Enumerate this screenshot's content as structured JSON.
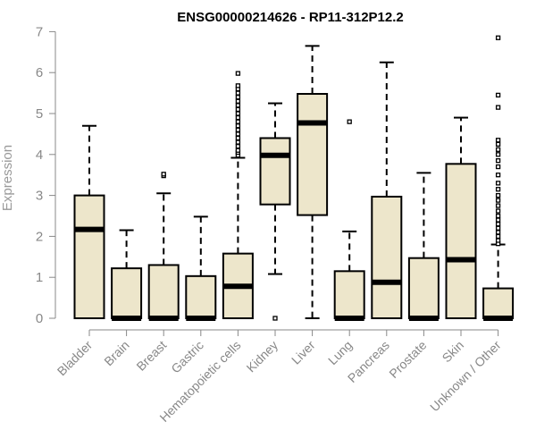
{
  "chart_data": {
    "type": "box",
    "title": "ENSG00000214626 - RP11-312P12.2",
    "ylabel": "Expression",
    "ylim": [
      0,
      7
    ],
    "yticks": [
      0,
      1,
      2,
      3,
      4,
      5,
      6,
      7
    ],
    "box_fill": "#ede6cb",
    "categories": [
      "Bladder",
      "Brain",
      "Breast",
      "Gastric",
      "Hematopoietic cells",
      "Kidney",
      "Liver",
      "Lung",
      "Pancreas",
      "Prostate",
      "Skin",
      "Unknown / Other"
    ],
    "boxes": [
      {
        "category": "Bladder",
        "whisker_low": 0,
        "q1": 0,
        "median": 2.17,
        "q3": 3.0,
        "whisker_high": 4.7,
        "outliers": []
      },
      {
        "category": "Brain",
        "whisker_low": 0,
        "q1": 0,
        "median": 0,
        "q3": 1.22,
        "whisker_high": 2.15,
        "outliers": []
      },
      {
        "category": "Breast",
        "whisker_low": 0,
        "q1": 0,
        "median": 0,
        "q3": 1.3,
        "whisker_high": 3.05,
        "outliers": [
          3.48,
          3.52
        ]
      },
      {
        "category": "Gastric",
        "whisker_low": 0,
        "q1": 0,
        "median": 0,
        "q3": 1.03,
        "whisker_high": 2.48,
        "outliers": []
      },
      {
        "category": "Hematopoietic cells",
        "whisker_low": 0,
        "q1": 0,
        "median": 0.78,
        "q3": 1.58,
        "whisker_high": 3.92,
        "outliers": [
          3.98,
          4.05,
          4.1,
          4.2,
          4.3,
          4.4,
          4.5,
          4.6,
          4.7,
          4.8,
          4.9,
          5.0,
          5.1,
          5.2,
          5.3,
          5.4,
          5.5,
          5.6,
          5.68,
          5.98
        ]
      },
      {
        "category": "Kidney",
        "whisker_low": 1.08,
        "q1": 2.78,
        "median": 3.98,
        "q3": 4.4,
        "whisker_high": 5.25,
        "outliers": [
          0
        ]
      },
      {
        "category": "Liver",
        "whisker_low": 0,
        "q1": 2.52,
        "median": 4.77,
        "q3": 5.48,
        "whisker_high": 6.65,
        "outliers": []
      },
      {
        "category": "Lung",
        "whisker_low": 0,
        "q1": 0,
        "median": 0,
        "q3": 1.15,
        "whisker_high": 2.12,
        "outliers": [
          4.8
        ]
      },
      {
        "category": "Pancreas",
        "whisker_low": 0,
        "q1": 0,
        "median": 0.88,
        "q3": 2.97,
        "whisker_high": 6.25,
        "outliers": []
      },
      {
        "category": "Prostate",
        "whisker_low": 0,
        "q1": 0,
        "median": 0,
        "q3": 1.47,
        "whisker_high": 3.55,
        "outliers": []
      },
      {
        "category": "Skin",
        "whisker_low": 0,
        "q1": 0,
        "median": 1.43,
        "q3": 3.77,
        "whisker_high": 4.9,
        "outliers": []
      },
      {
        "category": "Unknown / Other",
        "whisker_low": 0,
        "q1": 0,
        "median": 0,
        "q3": 0.73,
        "whisker_high": 1.8,
        "outliers": [
          1.82,
          1.9,
          2.0,
          2.1,
          2.2,
          2.3,
          2.4,
          2.5,
          2.62,
          2.75,
          2.88,
          3.0,
          3.15,
          3.3,
          3.5,
          3.7,
          3.85,
          4.0,
          4.12,
          4.25,
          4.35,
          5.15,
          5.45,
          6.85
        ]
      }
    ]
  }
}
